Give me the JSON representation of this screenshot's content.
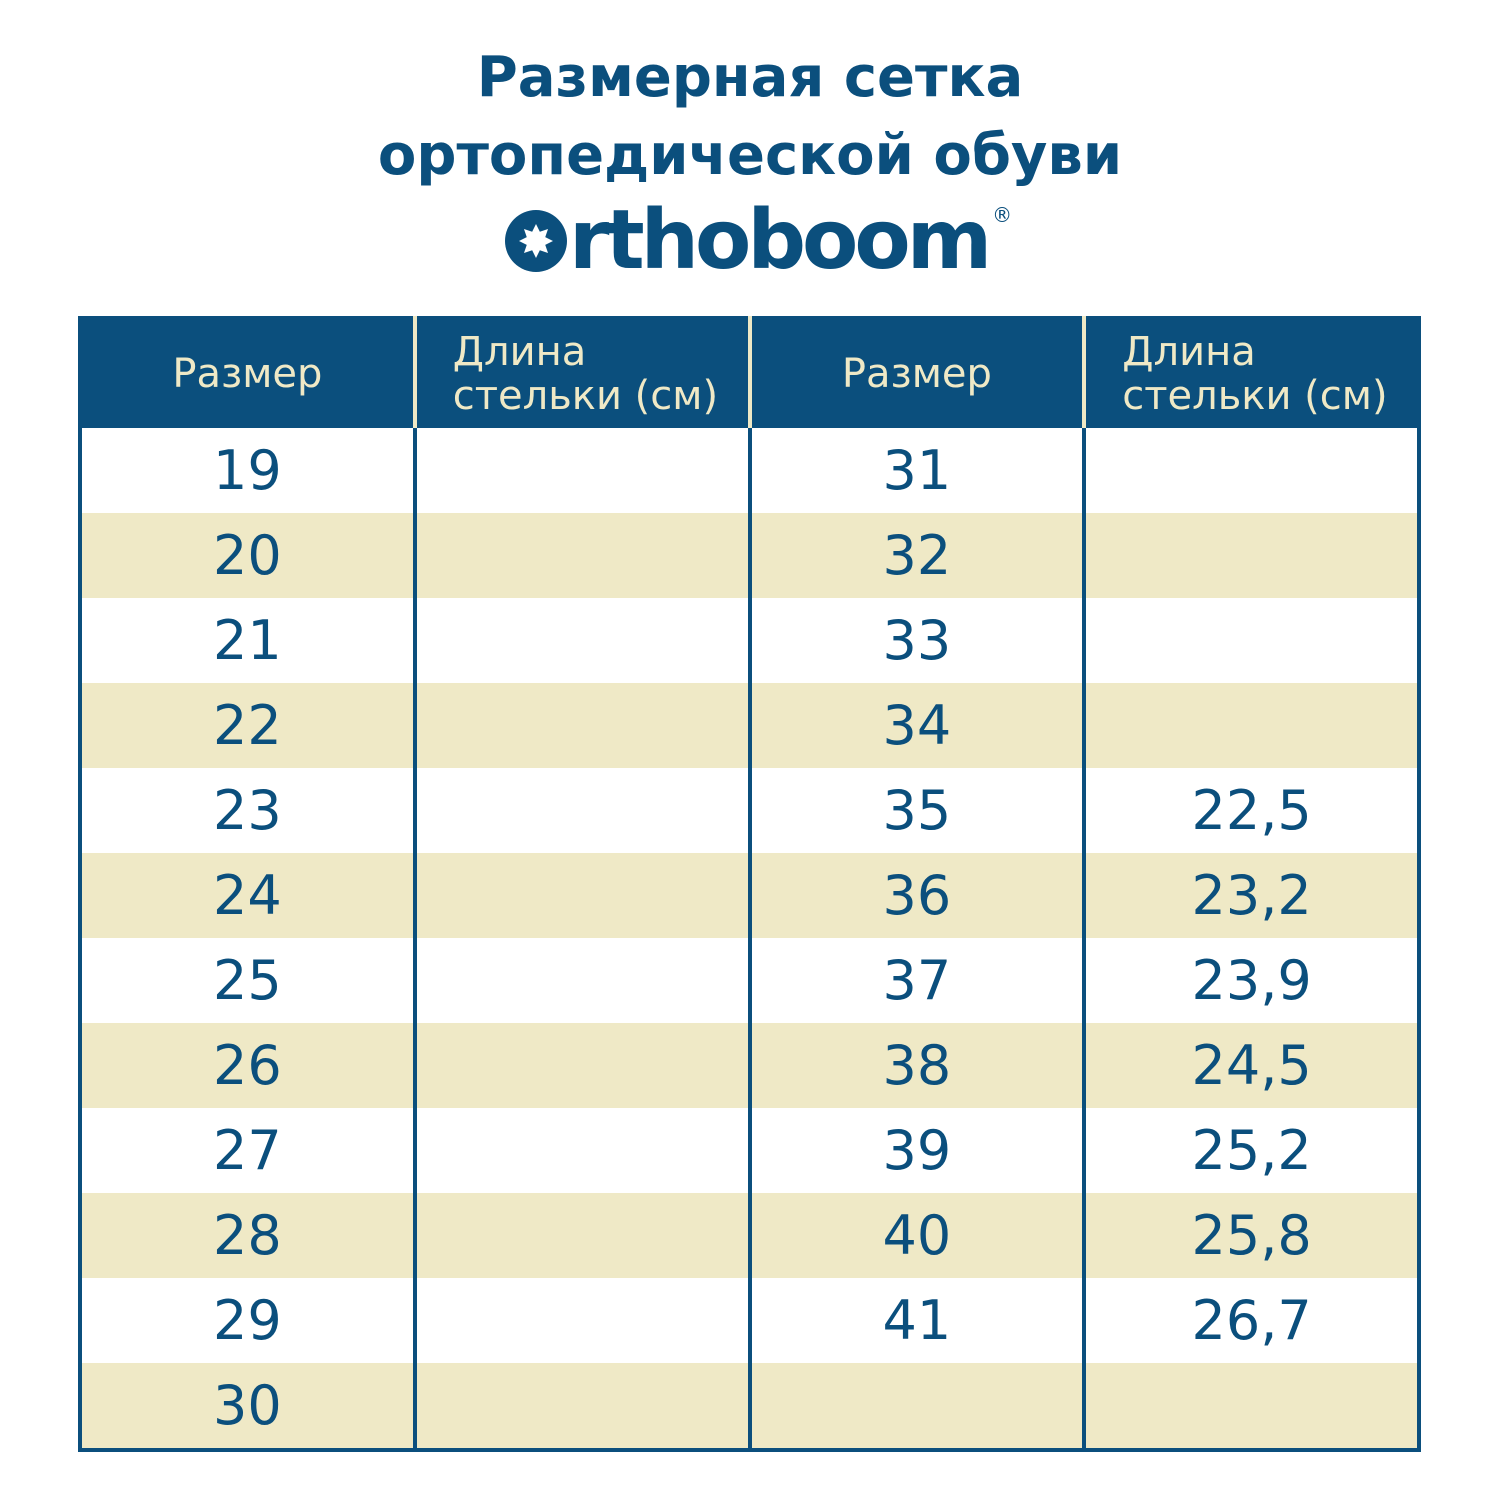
{
  "title_line1": "Размерная сетка",
  "title_line2": "ортопедической обуви",
  "logo": {
    "text": "rthoboom",
    "full": "Orthoboom",
    "reg": "®"
  },
  "colors": {
    "primary": "#0b4f7d",
    "accent": "#efe9c6"
  },
  "table": {
    "headers": [
      "Размер",
      "Длина стельки (см)",
      "Размер",
      "Длина стельки (см)"
    ],
    "header_length_line1": "Длина",
    "header_length_line2": "стельки (см)",
    "rows": [
      [
        "19",
        "",
        "31",
        ""
      ],
      [
        "20",
        "",
        "32",
        ""
      ],
      [
        "21",
        "",
        "33",
        ""
      ],
      [
        "22",
        "",
        "34",
        ""
      ],
      [
        "23",
        "",
        "35",
        "22,5"
      ],
      [
        "24",
        "",
        "36",
        "23,2"
      ],
      [
        "25",
        "",
        "37",
        "23,9"
      ],
      [
        "26",
        "",
        "38",
        "24,5"
      ],
      [
        "27",
        "",
        "39",
        "25,2"
      ],
      [
        "28",
        "",
        "40",
        "25,8"
      ],
      [
        "29",
        "",
        "41",
        "26,7"
      ],
      [
        "30",
        "",
        "",
        ""
      ]
    ]
  }
}
